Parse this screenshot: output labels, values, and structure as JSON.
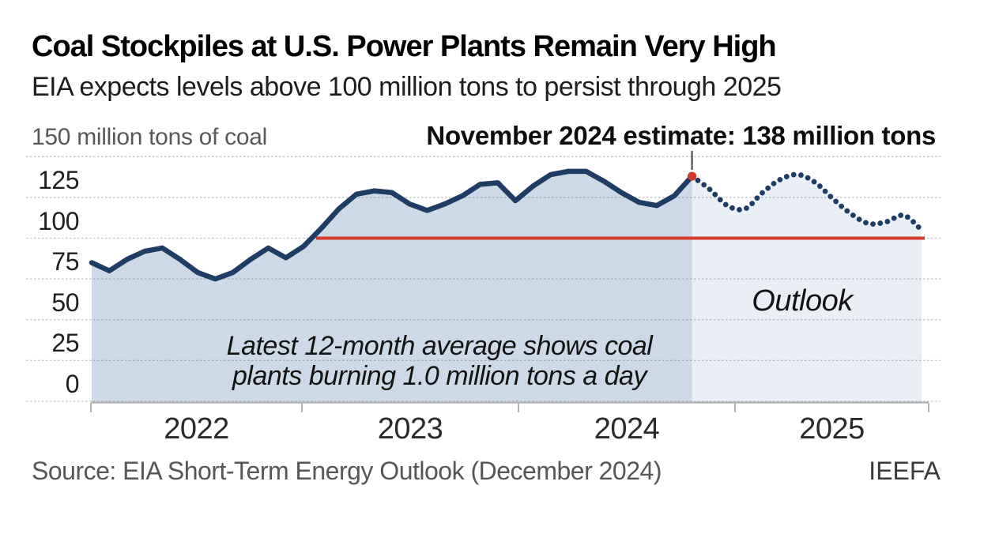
{
  "header": {
    "title": "Coal Stockpiles at U.S. Power Plants Remain Very High",
    "subtitle": "EIA expects levels above 100 million tons to persist through 2025"
  },
  "chart_notes": {
    "unit_note": "150 million tons of coal",
    "estimate_note": "November 2024 estimate: 138 million tons",
    "outlook_label": "Outlook",
    "burn_note_line1": "Latest 12-month average shows coal",
    "burn_note_line2": "plants burning 1.0 million tons a day"
  },
  "footer": {
    "source": "Source: EIA Short-Term Energy Outlook (December 2024)",
    "credit": "IEEFA"
  },
  "colors": {
    "line_navy": "#1f3c64",
    "accent_red": "#d23b2c",
    "hist_fill": "rgba(60,110,160,0.26)",
    "outlook_fill": "rgba(60,110,160,0.115)",
    "gridline": "#c2c3c5",
    "axis": "#b1b3b5",
    "connector": "#4f4f4f"
  },
  "chart_data": {
    "type": "line",
    "title": "Coal stockpiles at U.S. power plants",
    "ylabel": "million tons of coal",
    "ylim": [
      0,
      150
    ],
    "y_ticks": [
      0,
      25,
      50,
      75,
      100,
      125,
      150
    ],
    "x_tick_years": [
      "2022",
      "2023",
      "2024",
      "2025"
    ],
    "x_start": "2022-01",
    "x_end": "2025-12",
    "grid": true,
    "reference_line": {
      "value": 100
    },
    "highlight_point": {
      "label": "November 2024 estimate",
      "month": "2024-11",
      "value": 138
    },
    "series": [
      {
        "name": "Stockpiles (historical)",
        "style": "solid",
        "start_month": "2022-01",
        "values": [
          85,
          80,
          87,
          92,
          94,
          87,
          79,
          75,
          79,
          87,
          94,
          88,
          95,
          106,
          118,
          127,
          129,
          128,
          121,
          117,
          121,
          126,
          133,
          134,
          123,
          132,
          139,
          141,
          141,
          135,
          128,
          122,
          120,
          126,
          138
        ]
      },
      {
        "name": "Stockpiles (outlook)",
        "style": "dotted",
        "start_month": "2024-11",
        "values": [
          138,
          130,
          120,
          118,
          128,
          136,
          139,
          134,
          124,
          115,
          109,
          110,
          114,
          105
        ]
      }
    ]
  }
}
